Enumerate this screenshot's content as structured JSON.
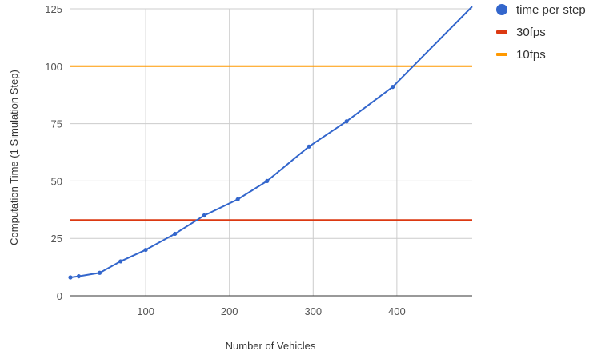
{
  "chart_data": {
    "type": "line",
    "xlabel": "Number of Vehicles",
    "ylabel": "Computation Time (1 Simulation Step)",
    "xlim": [
      10,
      490
    ],
    "ylim": [
      0,
      125
    ],
    "x_ticks": [
      100,
      200,
      300,
      400
    ],
    "y_ticks": [
      0,
      25,
      50,
      75,
      100,
      125
    ],
    "grid": true,
    "legend_position": "right",
    "series": [
      {
        "name": "time per step",
        "color": "#3366cc",
        "marker": "circle",
        "x": [
          10,
          20,
          45,
          70,
          100,
          135,
          170,
          210,
          245,
          295,
          340,
          395,
          490
        ],
        "y": [
          8,
          8.5,
          10,
          15,
          20,
          27,
          35,
          42,
          50,
          65,
          76,
          91,
          126
        ]
      },
      {
        "name": "30fps",
        "color": "#dc3912",
        "marker": "line",
        "x": [
          10,
          490
        ],
        "y": [
          33,
          33
        ]
      },
      {
        "name": "10fps",
        "color": "#ff9900",
        "marker": "line",
        "x": [
          10,
          490
        ],
        "y": [
          100,
          100
        ]
      }
    ]
  }
}
